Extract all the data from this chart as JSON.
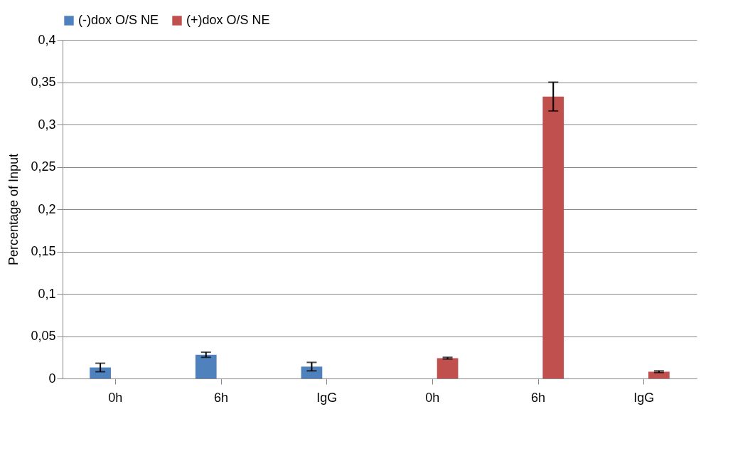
{
  "chart_data": {
    "type": "bar",
    "ylabel": "Percentage of Input",
    "categories": [
      "0h",
      "6h",
      "IgG",
      "0h",
      "6h",
      "IgG"
    ],
    "series": [
      {
        "name": "(-)dox O/S NE",
        "color": "#4f81bd",
        "values": [
          0.013,
          0.028,
          0.014,
          null,
          null,
          null
        ],
        "errors": [
          0.005,
          0.003,
          0.005,
          null,
          null,
          null
        ]
      },
      {
        "name": "(+)dox O/S NE",
        "color": "#c0504d",
        "values": [
          0,
          0,
          0,
          0.024,
          0.333,
          0.008
        ],
        "errors": [
          null,
          null,
          null,
          0.001,
          0.017,
          0.001
        ]
      }
    ],
    "ylim": [
      0,
      0.4
    ],
    "yticks": [
      {
        "value": 0,
        "label": "0"
      },
      {
        "value": 0.05,
        "label": "0,05"
      },
      {
        "value": 0.1,
        "label": "0,1"
      },
      {
        "value": 0.15,
        "label": "0,15"
      },
      {
        "value": 0.2,
        "label": "0,2"
      },
      {
        "value": 0.25,
        "label": "0,25"
      },
      {
        "value": 0.3,
        "label": "0,3"
      },
      {
        "value": 0.35,
        "label": "0,35"
      },
      {
        "value": 0.4,
        "label": "0,4"
      }
    ],
    "grid": "y",
    "legend": "top"
  }
}
